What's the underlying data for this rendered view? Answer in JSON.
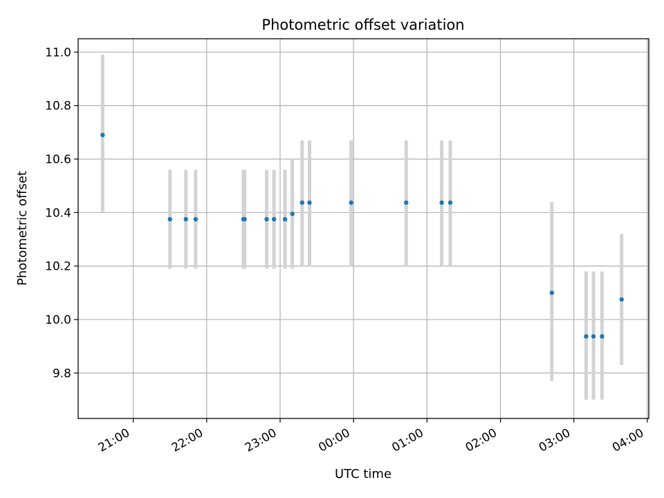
{
  "chart_data": {
    "type": "scatter",
    "title": "Photometric offset variation",
    "xlabel": "UTC time",
    "ylabel": "Photometric offset",
    "grid": true,
    "xlim_hours": [
      20.25,
      28.02
    ],
    "ylim": [
      9.63,
      11.05
    ],
    "x_ticks": [
      {
        "value": 21,
        "label": "21:00"
      },
      {
        "value": 22,
        "label": "22:00"
      },
      {
        "value": 23,
        "label": "23:00"
      },
      {
        "value": 24,
        "label": "00:00"
      },
      {
        "value": 25,
        "label": "01:00"
      },
      {
        "value": 26,
        "label": "02:00"
      },
      {
        "value": 27,
        "label": "03:00"
      },
      {
        "value": 28,
        "label": "04:00"
      }
    ],
    "y_ticks": [
      {
        "value": 9.8,
        "label": "9.8"
      },
      {
        "value": 10.0,
        "label": "10.0"
      },
      {
        "value": 10.2,
        "label": "10.2"
      },
      {
        "value": 10.4,
        "label": "10.4"
      },
      {
        "value": 10.6,
        "label": "10.6"
      },
      {
        "value": 10.8,
        "label": "10.8"
      },
      {
        "value": 11.0,
        "label": "11.0"
      }
    ],
    "colors": {
      "point": "#1f77b4",
      "errorbar": "#d3d3d3",
      "grid": "#b0b0b0"
    },
    "series": [
      {
        "points": [
          {
            "x": "20:35",
            "y": 10.69,
            "ylo": 10.4,
            "yhi": 10.99
          },
          {
            "x": "21:30",
            "y": 10.375,
            "ylo": 10.19,
            "yhi": 10.56
          },
          {
            "x": "21:43",
            "y": 10.375,
            "ylo": 10.19,
            "yhi": 10.56
          },
          {
            "x": "21:51",
            "y": 10.375,
            "ylo": 10.19,
            "yhi": 10.56
          },
          {
            "x": "22:30",
            "y": 10.375,
            "ylo": 10.19,
            "yhi": 10.56
          },
          {
            "x": "22:31",
            "y": 10.375,
            "ylo": 10.19,
            "yhi": 10.56
          },
          {
            "x": "22:49",
            "y": 10.375,
            "ylo": 10.19,
            "yhi": 10.56
          },
          {
            "x": "22:55",
            "y": 10.375,
            "ylo": 10.19,
            "yhi": 10.56
          },
          {
            "x": "23:04",
            "y": 10.375,
            "ylo": 10.19,
            "yhi": 10.56
          },
          {
            "x": "23:10",
            "y": 10.395,
            "ylo": 10.19,
            "yhi": 10.6
          },
          {
            "x": "23:18",
            "y": 10.437,
            "ylo": 10.2,
            "yhi": 10.67
          },
          {
            "x": "23:24",
            "y": 10.437,
            "ylo": 10.2,
            "yhi": 10.67
          },
          {
            "x": "23:58",
            "y": 10.437,
            "ylo": 10.2,
            "yhi": 10.67
          },
          {
            "x": "00:43",
            "y": 10.437,
            "ylo": 10.2,
            "yhi": 10.67
          },
          {
            "x": "01:12",
            "y": 10.437,
            "ylo": 10.2,
            "yhi": 10.67
          },
          {
            "x": "01:19",
            "y": 10.437,
            "ylo": 10.2,
            "yhi": 10.67
          },
          {
            "x": "02:42",
            "y": 10.1,
            "ylo": 9.77,
            "yhi": 10.44
          },
          {
            "x": "03:10",
            "y": 9.937,
            "ylo": 9.7,
            "yhi": 10.18
          },
          {
            "x": "03:16",
            "y": 9.937,
            "ylo": 9.7,
            "yhi": 10.18
          },
          {
            "x": "03:23",
            "y": 9.937,
            "ylo": 9.7,
            "yhi": 10.18
          },
          {
            "x": "03:39",
            "y": 10.075,
            "ylo": 9.83,
            "yhi": 10.32
          }
        ]
      }
    ]
  }
}
